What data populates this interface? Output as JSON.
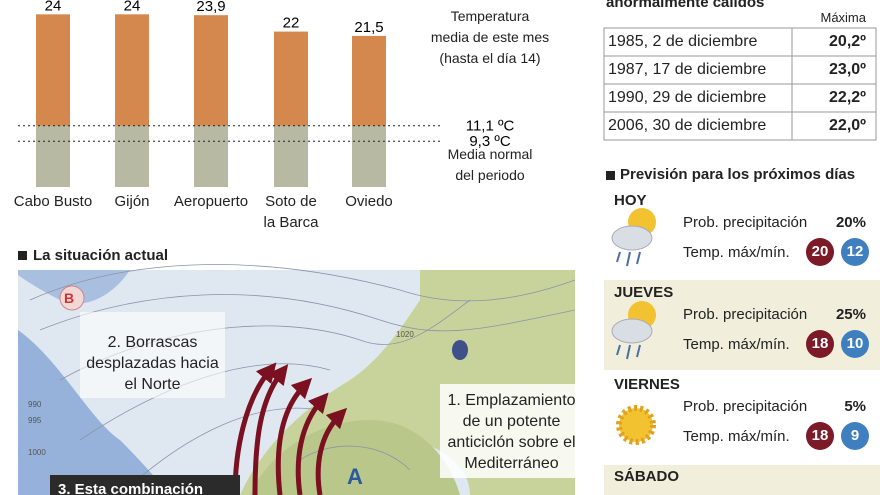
{
  "chart_data": {
    "type": "bar",
    "categories": [
      "Cabo Busto",
      "Gijón",
      "Aeropuerto",
      "Soto de\nla Barca",
      "Oviedo"
    ],
    "values": [
      24,
      24,
      23.9,
      22,
      21.5
    ],
    "value_labels": [
      "24",
      "24",
      "23,9",
      "22",
      "21,5"
    ],
    "color": "#d4884e",
    "base_color": "#b8b9a3",
    "ylim": [
      4,
      24.5
    ],
    "reference_lines": [
      {
        "value": 11.1,
        "label": "11,1 ºC"
      },
      {
        "value": 9.3,
        "label": "9,3 ºC"
      }
    ],
    "annotations": [
      "Temperatura\nmedia de este mes\n(hasta el día 14)",
      "Media normal\ndel periodo"
    ]
  },
  "records": {
    "title": "anormalmente cálidos",
    "column": "Máxima",
    "rows": [
      [
        "1985, 2 de diciembre",
        "20,2º"
      ],
      [
        "1987, 17 de diciembre",
        "23,0º"
      ],
      [
        "1990, 29 de diciembre",
        "22,2º"
      ],
      [
        "2006, 30 de diciembre",
        "22,0º"
      ]
    ]
  },
  "forecast": {
    "title": "Previsión para los próximos días",
    "days": [
      {
        "day": "HOY",
        "precip_label": "Prob. precipitación",
        "precip": "20%",
        "temp_label": "Temp. máx/mín.",
        "max": "20",
        "min": "12"
      },
      {
        "day": "JUEVES",
        "precip_label": "Prob. precipitación",
        "precip": "25%",
        "temp_label": "Temp. máx/mín.",
        "max": "18",
        "min": "10"
      },
      {
        "day": "VIERNES",
        "precip_label": "Prob. precipitación",
        "precip": "5%",
        "temp_label": "Temp. máx/mín.",
        "max": "18",
        "min": "9"
      },
      {
        "day": "SÁBADO"
      }
    ]
  },
  "map": {
    "title": "La situación actual",
    "low": "B",
    "high": "A",
    "note_north": "2. Borrascas\ndesplazadas hacia\nel Norte",
    "note_anticyclone": "1. Emplazamiento\nde un potente\nanticiclón sobre el\nMediterráneo",
    "note_combination": "3. Esta combinación",
    "isobars": [
      "1020",
      "990",
      "995",
      "1000"
    ]
  }
}
